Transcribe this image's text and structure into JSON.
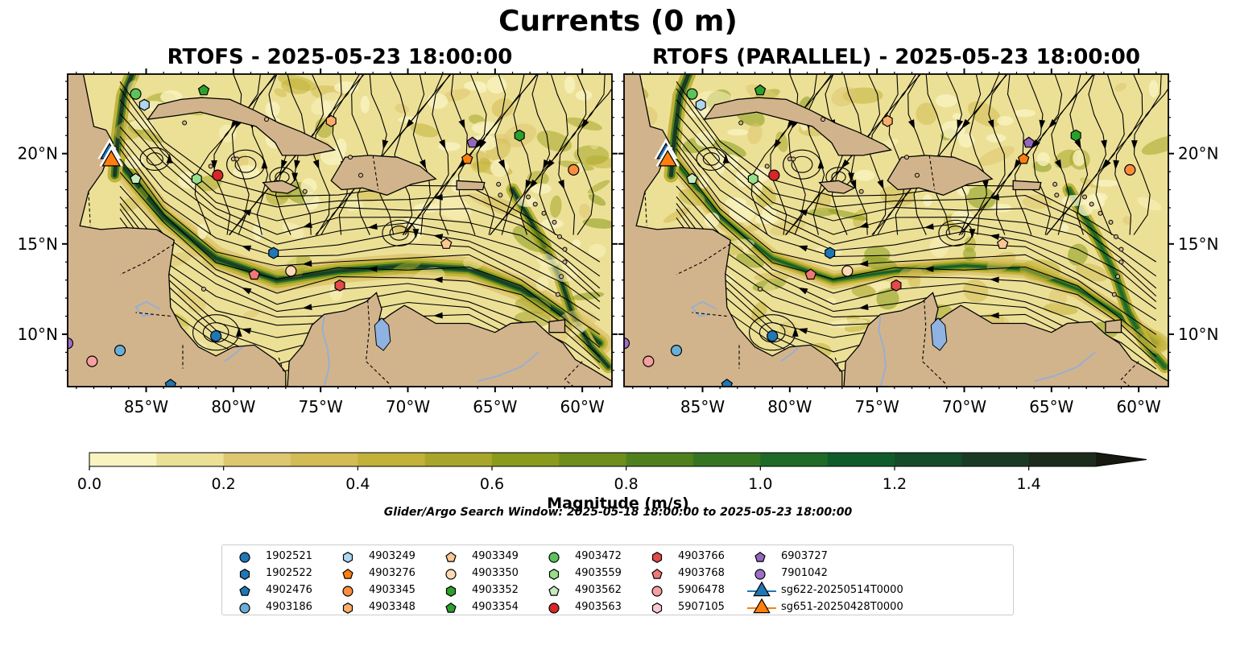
{
  "figure": {
    "title": "Currents (0 m)",
    "panels": [
      {
        "title": "RTOFS - 2025-05-23 18:00:00"
      },
      {
        "title": "RTOFS (PARALLEL) - 2025-05-23 18:00:00"
      }
    ],
    "search_window": "Glider/Argo Search Window: 2025-05-18 18:00:00 to 2025-05-23 18:00:00"
  },
  "chart_data": {
    "type": "map",
    "x_ticks": [
      "85°W",
      "80°W",
      "75°W",
      "70°W",
      "65°W",
      "60°W"
    ],
    "x_tick_values": [
      -85,
      -80,
      -75,
      -70,
      -65,
      -60
    ],
    "y_ticks": [
      "10°N",
      "15°N",
      "20°N"
    ],
    "y_tick_values": [
      10,
      15,
      20
    ],
    "xlim": [
      -89.5,
      -58.3
    ],
    "ylim": [
      7.1,
      24.4
    ],
    "colorbar": {
      "label": "Magnitude (m/s)",
      "range": [
        0,
        1.5
      ],
      "step": 0.1,
      "extend": "max",
      "tick_labels": [
        "0.0",
        "0.2",
        "0.4",
        "0.6",
        "0.8",
        "1.0",
        "1.2",
        "1.4"
      ],
      "tick_values": [
        0,
        0.2,
        0.4,
        0.6,
        0.8,
        1.0,
        1.2,
        1.4
      ],
      "colors": [
        "#f9f3c0",
        "#ece096",
        "#dec771",
        "#d3bb55",
        "#c2b23a",
        "#a8a62a",
        "#8a9a1c",
        "#6e8d1b",
        "#50801e",
        "#357522",
        "#1e6a26",
        "#0f5c2a",
        "#154b2a",
        "#1b3a25",
        "#1c2c1c",
        "#15190f"
      ]
    },
    "colors": {
      "land": "#d2b48c",
      "lake": "#8fb3e0",
      "river": "#9aaecf"
    },
    "series": [
      {
        "name": "1902521",
        "marker": "circle",
        "color": "#1f77b4",
        "points": [
          {
            "lon": -81.0,
            "lat": 9.9
          }
        ]
      },
      {
        "name": "1902522",
        "marker": "hexagon",
        "color": "#1f77b4",
        "points": [
          {
            "lon": -77.7,
            "lat": 14.5
          }
        ]
      },
      {
        "name": "4902476",
        "marker": "pentagon",
        "color": "#1f77b4",
        "points": [
          {
            "lon": -83.6,
            "lat": 7.2
          }
        ]
      },
      {
        "name": "4903186",
        "marker": "circle",
        "color": "#6aaed6",
        "points": [
          {
            "lon": -86.5,
            "lat": 9.1
          }
        ]
      },
      {
        "name": "4903249",
        "marker": "hexagon",
        "color": "#aed6f1",
        "points": [
          {
            "lon": -85.1,
            "lat": 22.7
          }
        ]
      },
      {
        "name": "4903276",
        "marker": "pentagon",
        "color": "#ff7f0e",
        "points": [
          {
            "lon": -66.6,
            "lat": 19.7
          }
        ]
      },
      {
        "name": "4903345",
        "marker": "circle",
        "color": "#fd8d3c",
        "points": [
          {
            "lon": -60.5,
            "lat": 19.1
          }
        ]
      },
      {
        "name": "4903348",
        "marker": "hexagon",
        "color": "#fdae6b",
        "points": [
          {
            "lon": -74.4,
            "lat": 21.8
          }
        ]
      },
      {
        "name": "4903349",
        "marker": "pentagon",
        "color": "#fdc692",
        "points": [
          {
            "lon": -67.8,
            "lat": 15.0
          }
        ]
      },
      {
        "name": "4903350",
        "marker": "circle",
        "color": "#fdd9b5",
        "points": [
          {
            "lon": -76.7,
            "lat": 13.5
          }
        ]
      },
      {
        "name": "4903352",
        "marker": "hexagon",
        "color": "#2ca02c",
        "points": [
          {
            "lon": -63.6,
            "lat": 21.0
          }
        ]
      },
      {
        "name": "4903354",
        "marker": "pentagon",
        "color": "#2ca02c",
        "points": [
          {
            "lon": -81.7,
            "lat": 23.5
          }
        ]
      },
      {
        "name": "4903472",
        "marker": "circle",
        "color": "#5cc35c",
        "points": [
          {
            "lon": -85.6,
            "lat": 23.3
          }
        ]
      },
      {
        "name": "4903559",
        "marker": "hexagon",
        "color": "#98df8a",
        "points": [
          {
            "lon": -82.1,
            "lat": 18.6
          }
        ]
      },
      {
        "name": "4903562",
        "marker": "pentagon",
        "color": "#c7e9c0",
        "points": [
          {
            "lon": -85.6,
            "lat": 18.6
          }
        ]
      },
      {
        "name": "4903563",
        "marker": "circle",
        "color": "#d62728",
        "points": [
          {
            "lon": -80.9,
            "lat": 18.8
          }
        ]
      },
      {
        "name": "4903766",
        "marker": "hexagon",
        "color": "#e34a4a",
        "points": [
          {
            "lon": -73.9,
            "lat": 12.7
          }
        ]
      },
      {
        "name": "4903768",
        "marker": "pentagon",
        "color": "#f07878",
        "points": [
          {
            "lon": -78.8,
            "lat": 13.3
          }
        ]
      },
      {
        "name": "5906478",
        "marker": "circle",
        "color": "#f4a0a0",
        "points": [
          {
            "lon": -88.1,
            "lat": 8.5
          }
        ]
      },
      {
        "name": "5907105",
        "marker": "hexagon",
        "color": "#fbc8d2",
        "points": []
      },
      {
        "name": "6903727",
        "marker": "pentagon",
        "color": "#9467bd",
        "points": [
          {
            "lon": -66.3,
            "lat": 20.6
          }
        ]
      },
      {
        "name": "7901042",
        "marker": "circle",
        "color": "#9c6fc8",
        "points": [
          {
            "lon": -89.5,
            "lat": 9.5
          }
        ]
      },
      {
        "name": "sg622-20250514T0000",
        "marker": "triangle",
        "color": "#1f77b4",
        "line": true,
        "points": [
          {
            "lon": -87.1,
            "lat": 20.0
          }
        ]
      },
      {
        "name": "sg651-20250428T0000",
        "marker": "triangle",
        "color": "#ff7f0e",
        "line": true,
        "points": [
          {
            "lon": -87.0,
            "lat": 19.6
          }
        ]
      }
    ]
  }
}
